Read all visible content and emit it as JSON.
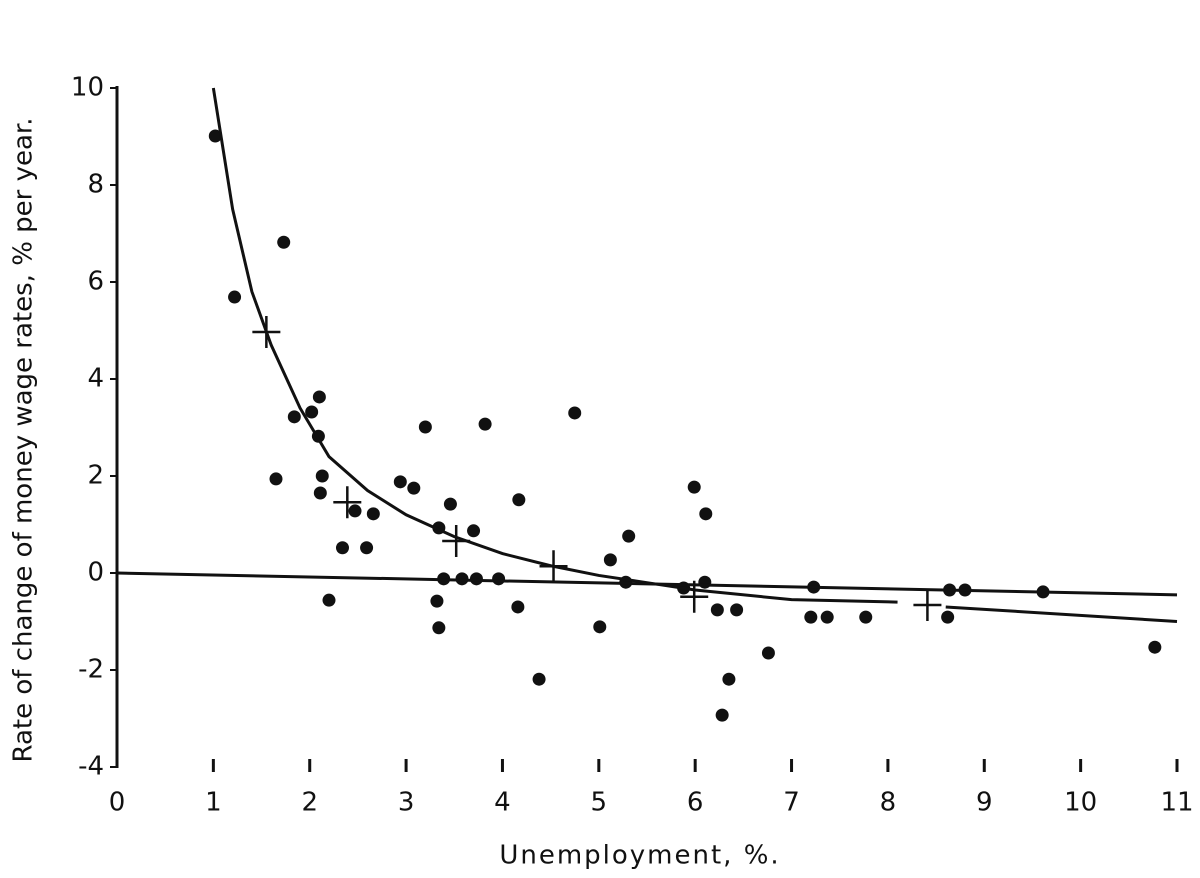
{
  "chart_data": {
    "type": "scatter",
    "y_label": "Rate of change of money wage rates, % per year.",
    "x_label": "Unemployment, %.",
    "xlim": [
      0,
      11
    ],
    "xticks": [
      0,
      1,
      2,
      3,
      4,
      5,
      6,
      7,
      8,
      9,
      10,
      11
    ],
    "ylim": [
      -4,
      10
    ],
    "yticks": [
      -4,
      -2,
      0,
      2,
      4,
      6,
      8,
      10
    ],
    "grid": false,
    "series": [
      {
        "marker": "dot",
        "color": "#111111",
        "x": [
          1.02,
          1.22,
          1.73,
          1.65,
          1.84,
          2.02,
          2.1,
          2.09,
          2.13,
          2.11,
          2.2,
          2.34,
          2.47,
          2.59,
          2.66,
          2.94,
          3.08,
          3.2,
          3.32,
          3.34,
          3.34,
          3.39,
          3.46,
          3.58,
          3.7,
          3.73,
          3.82,
          3.96,
          4.16,
          4.17,
          4.38,
          4.75,
          5.01,
          5.12,
          5.28,
          5.31,
          5.88,
          5.99,
          6.11,
          6.1,
          6.23,
          6.28,
          6.35,
          6.43,
          6.76,
          7.23,
          7.2,
          7.37,
          7.77,
          8.64,
          8.62,
          8.8,
          9.61,
          10.77
        ],
        "values": [
          9.01,
          5.69,
          6.82,
          1.94,
          3.22,
          3.32,
          3.63,
          2.82,
          2.0,
          1.65,
          -0.56,
          0.52,
          1.28,
          0.52,
          1.22,
          1.88,
          1.75,
          3.01,
          -0.58,
          -1.13,
          0.93,
          -0.12,
          1.42,
          -0.12,
          0.87,
          -0.12,
          3.07,
          -0.12,
          -0.7,
          1.51,
          -2.19,
          3.3,
          -1.11,
          0.27,
          -0.19,
          0.76,
          -0.31,
          1.77,
          1.22,
          -0.19,
          -0.76,
          -2.93,
          -2.19,
          -0.76,
          -1.65,
          -0.29,
          -0.91,
          -0.91,
          -0.91,
          -0.35,
          -0.91,
          -0.35,
          -0.39,
          -1.53
        ]
      },
      {
        "marker": "cross",
        "color": "#111111",
        "x": [
          1.55,
          2.39,
          3.52,
          4.53,
          5.99,
          8.41
        ],
        "values": [
          4.97,
          1.46,
          0.66,
          0.14,
          -0.49,
          -0.66
        ]
      },
      {
        "marker": "line",
        "color": "#111111",
        "x": [
          1.0,
          1.2,
          1.4,
          1.6,
          1.9,
          2.2,
          2.6,
          3.0,
          3.5,
          4.0,
          4.5,
          5.0,
          5.5,
          6.0,
          7.0,
          8.1,
          8.4,
          8.6,
          11.0
        ],
        "values": [
          10,
          7.5,
          5.8,
          4.7,
          3.4,
          2.4,
          1.7,
          1.2,
          0.75,
          0.4,
          0.15,
          -0.05,
          -0.2,
          -0.35,
          -0.55,
          -0.6,
          null,
          -0.7,
          -1.0
        ]
      },
      {
        "marker": "line",
        "color": "#111111",
        "x": [
          0,
          11
        ],
        "values": [
          0,
          -0.45
        ]
      }
    ]
  }
}
